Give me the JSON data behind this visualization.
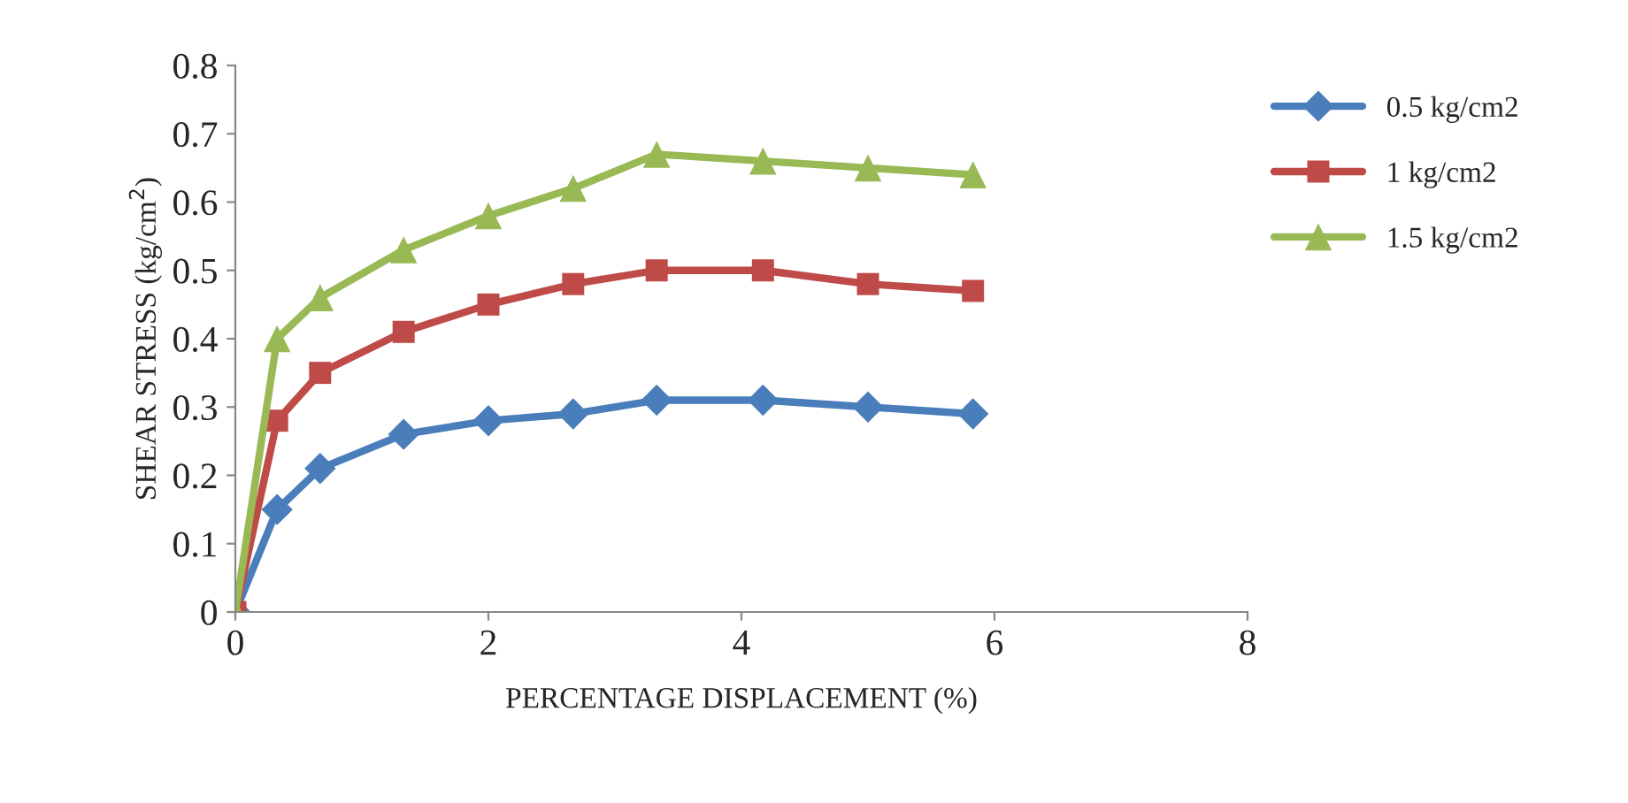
{
  "chart_data": {
    "type": "line",
    "xlabel": "PERCENTAGE DISPLACEMENT (%)",
    "ylabel": "SHEAR STRESS (kg/cm$^{2}$)",
    "x": [
      0,
      0.33,
      0.67,
      1.33,
      2,
      2.67,
      3.33,
      4.17,
      5,
      5.83
    ],
    "series": [
      {
        "name": "0.5 kg/cm2",
        "color": "#4a7ebb",
        "marker": "diamond",
        "values": [
          0,
          0.15,
          0.21,
          0.26,
          0.28,
          0.29,
          0.31,
          0.31,
          0.3,
          0.29
        ]
      },
      {
        "name": "1 kg/cm2",
        "color": "#be4b48",
        "marker": "square",
        "values": [
          0,
          0.28,
          0.35,
          0.41,
          0.45,
          0.48,
          0.5,
          0.5,
          0.48,
          0.47
        ]
      },
      {
        "name": "1.5 kg/cm2",
        "color": "#98b954",
        "marker": "triangle",
        "values": [
          0,
          0.4,
          0.46,
          0.53,
          0.58,
          0.62,
          0.67,
          0.66,
          0.65,
          0.64
        ]
      }
    ],
    "xlim": [
      0,
      8
    ],
    "xticks": [
      0,
      2,
      4,
      6,
      8
    ],
    "ylim": [
      0,
      0.8
    ],
    "yticks": [
      0,
      0.1,
      0.2,
      0.3,
      0.4,
      0.5,
      0.6,
      0.7,
      0.8
    ],
    "grid": false,
    "legend": "right",
    "line_style": "solid"
  }
}
